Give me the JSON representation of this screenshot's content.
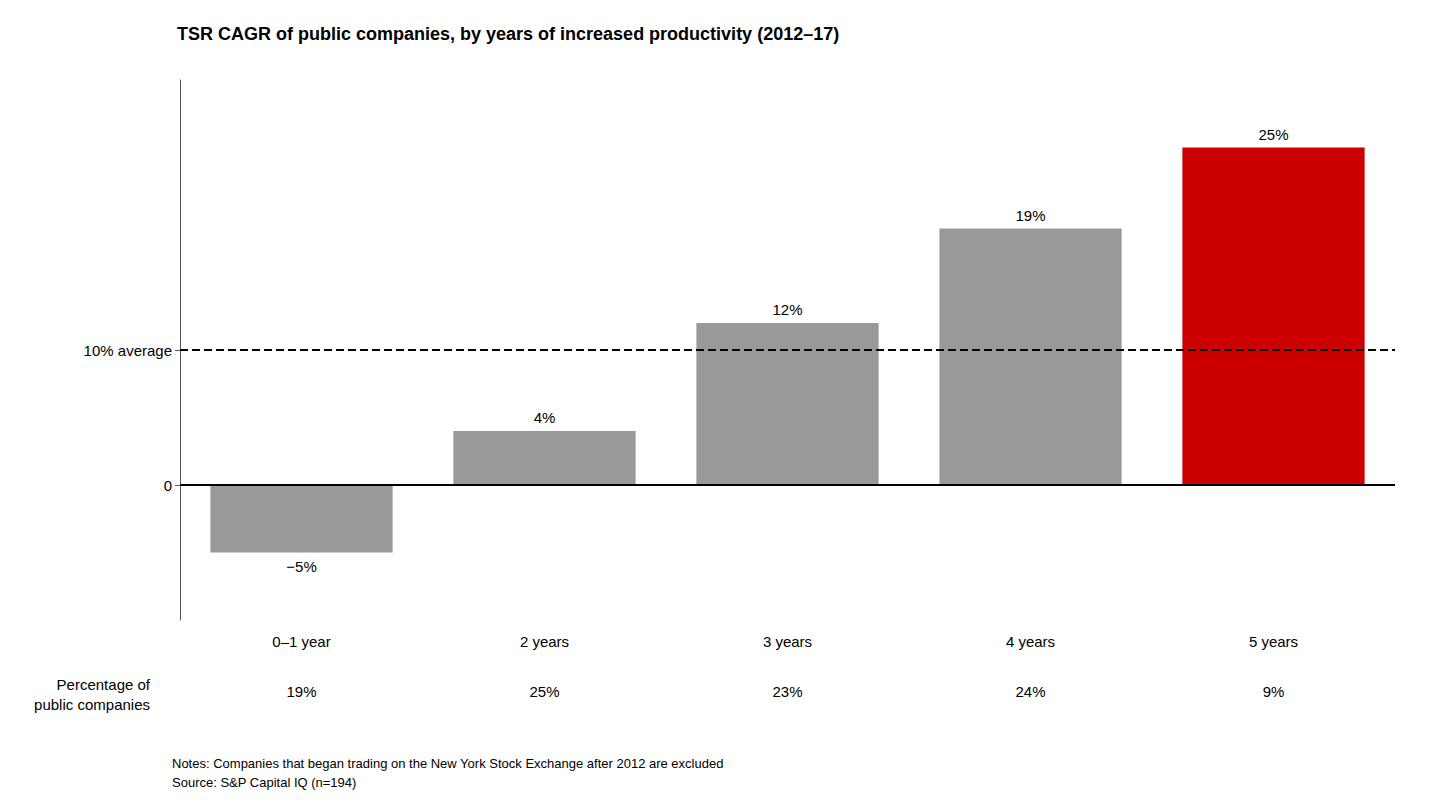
{
  "chart_data": {
    "type": "bar",
    "title": "TSR CAGR of public companies, by years of increased productivity (2012–17)",
    "categories": [
      "0–1 year",
      "2 years",
      "3 years",
      "4 years",
      "5 years"
    ],
    "values": [
      -5,
      4,
      12,
      19,
      25
    ],
    "value_labels": [
      "−5%",
      "4%",
      "12%",
      "19%",
      "25%"
    ],
    "data_labels": true,
    "colors": [
      "#999999",
      "#999999",
      "#999999",
      "#999999",
      "#cc0000"
    ],
    "ylim": [
      -10,
      30
    ],
    "yticks": [
      0,
      {
        "value": 10,
        "label": "10% average"
      }
    ],
    "grid": false,
    "reference_lines": [
      {
        "value": 0,
        "line_style": "solid",
        "color": "#000000"
      },
      {
        "value": 10,
        "line_style": "dashed",
        "color": "#000000"
      }
    ],
    "percentage_row_label": "Percentage of\npublic companies",
    "percentage_labels": [
      "19%",
      "25%",
      "23%",
      "24%",
      "9%"
    ],
    "notes": "Notes: Companies that began trading on the New York Stock Exchange after 2012 are excluded\nSource: S&P Capital IQ (n=194)"
  }
}
